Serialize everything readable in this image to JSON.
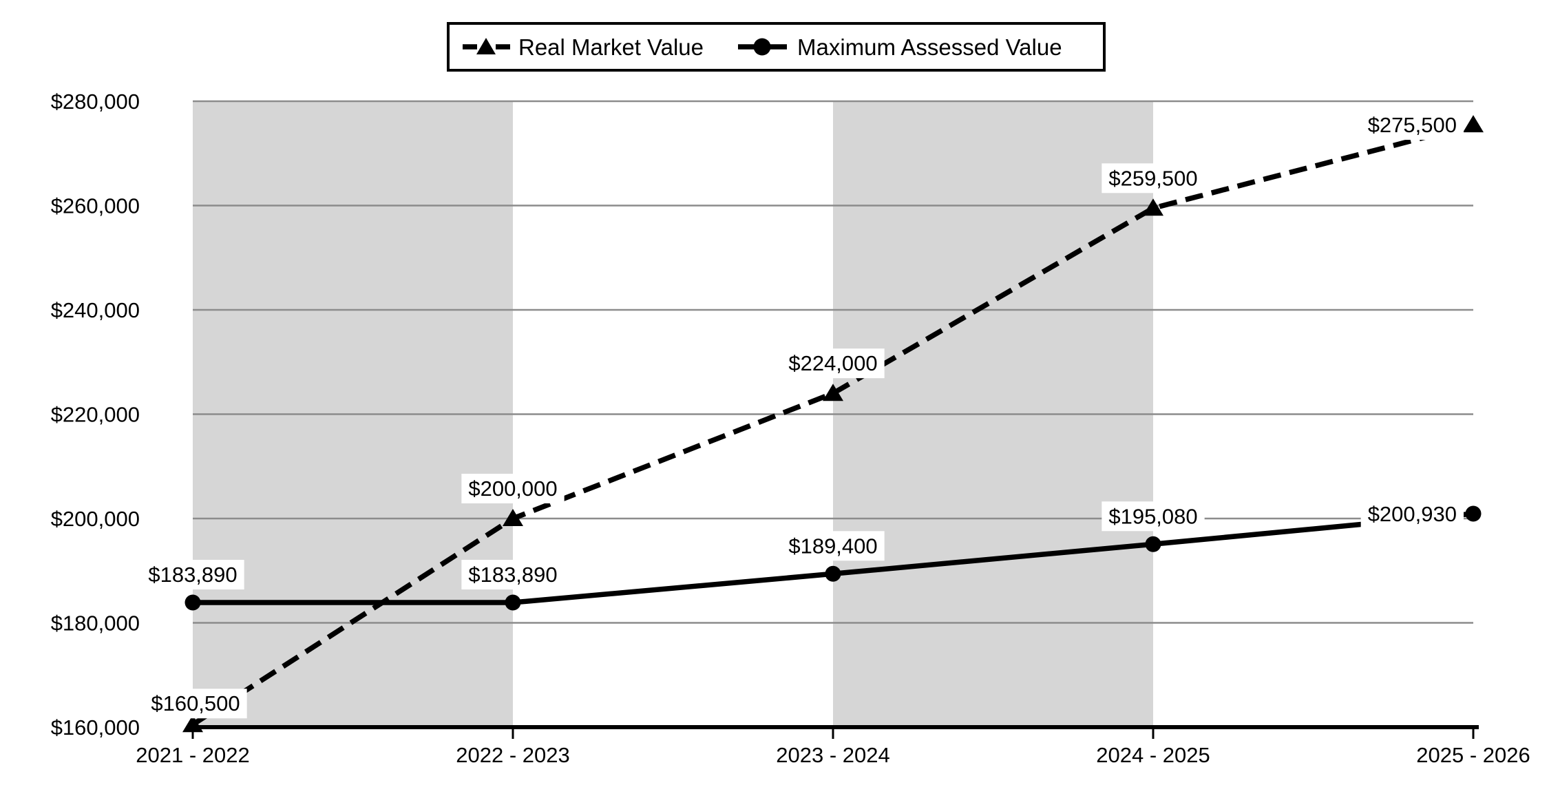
{
  "colors": {
    "series_line": "#000000",
    "gridline": "#8c8c8c",
    "plot_band": "#d6d6d6",
    "background": "#ffffff",
    "label_background": "#ffffff",
    "text": "#000000",
    "legend_border": "#000000"
  },
  "chart_data": {
    "type": "line",
    "title": "",
    "xlabel": "",
    "ylabel": "",
    "categories": [
      "2021 - 2022",
      "2022 - 2023",
      "2023 - 2024",
      "2024 - 2025",
      "2025 - 2026"
    ],
    "y_axis": {
      "min": 160000,
      "max": 280000,
      "step": 20000,
      "tick_labels": [
        "$160,000",
        "$180,000",
        "$200,000",
        "$220,000",
        "$240,000",
        "$260,000",
        "$280,000"
      ]
    },
    "grid": true,
    "legend_position": "top",
    "shaded_category_spans": [
      [
        0,
        1
      ],
      [
        2,
        3
      ]
    ],
    "series": [
      {
        "name": "Real Market Value",
        "line_style": "dashed",
        "marker": "triangle",
        "values": [
          160500,
          200000,
          224000,
          259500,
          275500
        ],
        "point_labels": [
          "$160,500",
          "$200,000",
          "$224,000",
          "$259,500",
          "$275,500"
        ]
      },
      {
        "name": "Maximum Assessed Value",
        "line_style": "solid",
        "marker": "circle",
        "values": [
          183890,
          183890,
          189400,
          195080,
          200930
        ],
        "point_labels": [
          "$183,890",
          "$183,890",
          "$189,400",
          "$195,080",
          "$200,930"
        ]
      }
    ]
  }
}
